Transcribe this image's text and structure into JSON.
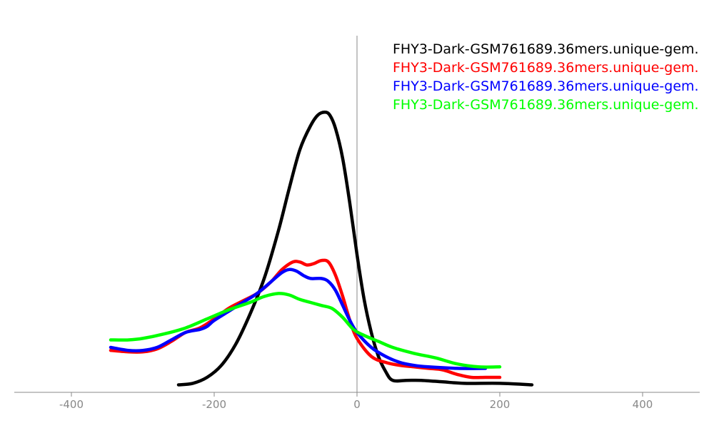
{
  "chart_data": {
    "type": "line",
    "title": "",
    "xlabel": "",
    "ylabel": "",
    "xlim": [
      -480,
      480
    ],
    "ylim": [
      0,
      1
    ],
    "grid": false,
    "legend_position": "top-right",
    "x_ticks": [
      -400,
      -200,
      0,
      200,
      400
    ],
    "x_tick_labels": [
      "-400",
      "-200",
      "0",
      "200",
      "400"
    ],
    "series": [
      {
        "name": "FHY3-Dark-GSM761689.36mers.unique-gem.",
        "color": "#000000",
        "points": [
          [
            -250,
            0.025
          ],
          [
            -230,
            0.03
          ],
          [
            -210,
            0.05
          ],
          [
            -190,
            0.09
          ],
          [
            -170,
            0.16
          ],
          [
            -150,
            0.26
          ],
          [
            -130,
            0.38
          ],
          [
            -110,
            0.54
          ],
          [
            -95,
            0.68
          ],
          [
            -80,
            0.81
          ],
          [
            -65,
            0.89
          ],
          [
            -55,
            0.925
          ],
          [
            -45,
            0.935
          ],
          [
            -38,
            0.925
          ],
          [
            -30,
            0.88
          ],
          [
            -20,
            0.78
          ],
          [
            -10,
            0.63
          ],
          [
            0,
            0.46
          ],
          [
            10,
            0.31
          ],
          [
            20,
            0.2
          ],
          [
            30,
            0.12
          ],
          [
            40,
            0.07
          ],
          [
            50,
            0.04
          ],
          [
            70,
            0.04
          ],
          [
            90,
            0.04
          ],
          [
            120,
            0.035
          ],
          [
            150,
            0.03
          ],
          [
            200,
            0.03
          ],
          [
            245,
            0.025
          ]
        ]
      },
      {
        "name": "FHY3-Dark-GSM761689.36mers.unique-gem.",
        "color": "#ff0000",
        "points": [
          [
            -345,
            0.14
          ],
          [
            -320,
            0.135
          ],
          [
            -300,
            0.135
          ],
          [
            -280,
            0.145
          ],
          [
            -260,
            0.17
          ],
          [
            -240,
            0.2
          ],
          [
            -220,
            0.215
          ],
          [
            -200,
            0.245
          ],
          [
            -180,
            0.28
          ],
          [
            -160,
            0.305
          ],
          [
            -140,
            0.33
          ],
          [
            -120,
            0.37
          ],
          [
            -105,
            0.41
          ],
          [
            -90,
            0.435
          ],
          [
            -80,
            0.435
          ],
          [
            -70,
            0.425
          ],
          [
            -60,
            0.43
          ],
          [
            -50,
            0.44
          ],
          [
            -40,
            0.435
          ],
          [
            -30,
            0.39
          ],
          [
            -20,
            0.32
          ],
          [
            -10,
            0.24
          ],
          [
            0,
            0.18
          ],
          [
            20,
            0.12
          ],
          [
            40,
            0.1
          ],
          [
            60,
            0.09
          ],
          [
            80,
            0.085
          ],
          [
            100,
            0.08
          ],
          [
            120,
            0.075
          ],
          [
            140,
            0.06
          ],
          [
            160,
            0.05
          ],
          [
            180,
            0.05
          ],
          [
            200,
            0.05
          ]
        ]
      },
      {
        "name": "FHY3-Dark-GSM761689.36mers.unique-gem.",
        "color": "#0000ff",
        "points": [
          [
            -345,
            0.15
          ],
          [
            -320,
            0.14
          ],
          [
            -300,
            0.14
          ],
          [
            -280,
            0.15
          ],
          [
            -260,
            0.175
          ],
          [
            -240,
            0.2
          ],
          [
            -220,
            0.21
          ],
          [
            -210,
            0.22
          ],
          [
            -200,
            0.24
          ],
          [
            -180,
            0.27
          ],
          [
            -160,
            0.3
          ],
          [
            -140,
            0.33
          ],
          [
            -120,
            0.37
          ],
          [
            -105,
            0.4
          ],
          [
            -95,
            0.41
          ],
          [
            -85,
            0.405
          ],
          [
            -75,
            0.39
          ],
          [
            -65,
            0.38
          ],
          [
            -50,
            0.38
          ],
          [
            -40,
            0.37
          ],
          [
            -30,
            0.34
          ],
          [
            -20,
            0.29
          ],
          [
            -10,
            0.24
          ],
          [
            0,
            0.2
          ],
          [
            20,
            0.15
          ],
          [
            40,
            0.12
          ],
          [
            60,
            0.1
          ],
          [
            80,
            0.09
          ],
          [
            100,
            0.085
          ],
          [
            140,
            0.08
          ],
          [
            180,
            0.08
          ]
        ]
      },
      {
        "name": "FHY3-Dark-GSM761689.36mers.unique-gem.",
        "color": "#00ff00",
        "points": [
          [
            -345,
            0.175
          ],
          [
            -320,
            0.175
          ],
          [
            -300,
            0.18
          ],
          [
            -270,
            0.195
          ],
          [
            -240,
            0.215
          ],
          [
            -210,
            0.245
          ],
          [
            -180,
            0.275
          ],
          [
            -150,
            0.3
          ],
          [
            -130,
            0.32
          ],
          [
            -110,
            0.33
          ],
          [
            -95,
            0.325
          ],
          [
            -80,
            0.31
          ],
          [
            -65,
            0.3
          ],
          [
            -50,
            0.29
          ],
          [
            -35,
            0.28
          ],
          [
            -20,
            0.25
          ],
          [
            -5,
            0.21
          ],
          [
            10,
            0.19
          ],
          [
            30,
            0.17
          ],
          [
            50,
            0.15
          ],
          [
            80,
            0.13
          ],
          [
            110,
            0.115
          ],
          [
            140,
            0.095
          ],
          [
            170,
            0.085
          ],
          [
            200,
            0.085
          ]
        ]
      }
    ]
  }
}
